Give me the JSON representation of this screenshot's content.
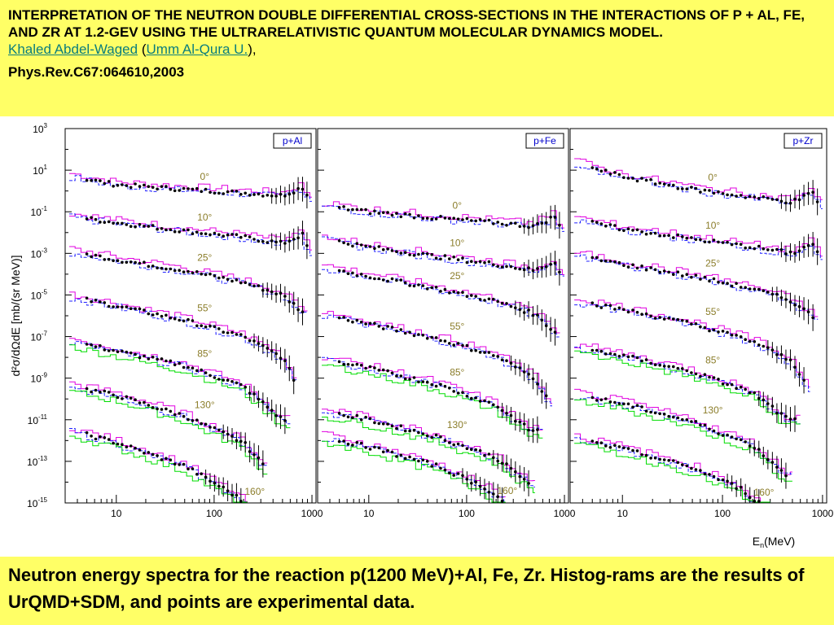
{
  "header": {
    "title": "INTERPRETATION OF THE NEUTRON DOUBLE DIFFERENTIAL CROSS-SECTIONS IN THE INTERACTIONS OF P + AL, FE, AND ZR AT 1.2-GEV USING THE ULTRARELATIVISTIC QUANTUM MOLECULAR DYNAMICS MODEL.",
    "author": "Khaled Abdel-Waged",
    "affiliation": "Umm Al-Qura U.",
    "reference": "Phys.Rev.C67:064610,2003"
  },
  "caption": "Neutron energy spectra for the reaction p(1200 MeV)+Al, Fe, Zr. Histog-rams are the results of UrQMD+SDM, and points are experimental data.",
  "colors": {
    "background": "#ffff66",
    "experiment": "#000000",
    "model_magenta": "#e000e0",
    "model_blue_dashed": "#2020ff",
    "model_green": "#00dd00",
    "angle_label": "#8b7d2a",
    "panel_label": "#0000cc"
  },
  "chart_data": {
    "type": "scatter",
    "xscale": "log",
    "yscale": "log",
    "xlabel": "E_n(MeV)",
    "ylabel": "d²σ/dΩdE [mb/(sr MeV)]",
    "xlim": [
      3,
      1100
    ],
    "ylim": [
      1e-15,
      1000.0
    ],
    "x_ticks": [
      "10",
      "100",
      "1000"
    ],
    "y_ticks": [
      "10^3",
      "10^1",
      "10^-1",
      "10^-3",
      "10^-5",
      "10^-7",
      "10^-9",
      "10^-11",
      "10^-13",
      "10^-15"
    ],
    "angles": [
      "0°",
      "10°",
      "25°",
      "55°",
      "85°",
      "130°",
      "160°"
    ],
    "panels": [
      {
        "label": "p+Al",
        "curves": [
          {
            "angle": "0°",
            "e_max": 1000,
            "points": [
              [
                3.5,
                5
              ],
              [
                10,
                2
              ],
              [
                50,
                1.2
              ],
              [
                200,
                0.8
              ],
              [
                500,
                0.6
              ],
              [
                800,
                1.5
              ],
              [
                950,
                0.4
              ]
            ]
          },
          {
            "angle": "10°",
            "e_max": 1000,
            "points": [
              [
                3.5,
                0.06
              ],
              [
                10,
                0.03
              ],
              [
                50,
                0.012
              ],
              [
                200,
                0.006
              ],
              [
                500,
                0.003
              ],
              [
                800,
                0.008
              ],
              [
                950,
                0.001
              ]
            ]
          },
          {
            "angle": "25°",
            "e_max": 900,
            "points": [
              [
                3.5,
                0.0012
              ],
              [
                10,
                0.0005
              ],
              [
                50,
                0.00015
              ],
              [
                200,
                4e-05
              ],
              [
                500,
                1e-05
              ],
              [
                900,
                1e-06
              ]
            ]
          },
          {
            "angle": "55°",
            "e_max": 700,
            "points": [
              [
                3.5,
                8e-06
              ],
              [
                10,
                3e-06
              ],
              [
                50,
                6e-07
              ],
              [
                200,
                1e-07
              ],
              [
                500,
                1e-08
              ],
              [
                700,
                5e-10
              ]
            ]
          },
          {
            "angle": "85°",
            "e_max": 600,
            "points": [
              [
                3.5,
                6e-08
              ],
              [
                10,
                2e-08
              ],
              [
                50,
                4e-09
              ],
              [
                200,
                4e-10
              ],
              [
                500,
                1e-11
              ]
            ]
          },
          {
            "angle": "130°",
            "e_max": 350,
            "points": [
              [
                3.5,
                4e-10
              ],
              [
                10,
                1.5e-10
              ],
              [
                50,
                1.5e-11
              ],
              [
                200,
                8e-13
              ],
              [
                350,
                4e-14
              ]
            ]
          },
          {
            "angle": "160°",
            "e_max": 220,
            "points": [
              [
                3.5,
                3e-12
              ],
              [
                10,
                8e-13
              ],
              [
                50,
                6e-14
              ],
              [
                150,
                3e-15
              ],
              [
                220,
                8e-16
              ]
            ]
          }
        ]
      },
      {
        "label": "p+Fe",
        "curves": [
          {
            "angle": "0°",
            "e_max": 1000,
            "points": [
              [
                3.5,
                0.2
              ],
              [
                10,
                0.1
              ],
              [
                50,
                0.05
              ],
              [
                200,
                0.03
              ],
              [
                500,
                0.02
              ],
              [
                800,
                0.06
              ],
              [
                950,
                0.01
              ]
            ]
          },
          {
            "angle": "10°",
            "e_max": 1000,
            "points": [
              [
                3.5,
                0.005
              ],
              [
                10,
                0.002
              ],
              [
                50,
                0.0007
              ],
              [
                200,
                0.0003
              ],
              [
                500,
                0.00015
              ],
              [
                800,
                0.0004
              ],
              [
                950,
                8e-05
              ]
            ]
          },
          {
            "angle": "25°",
            "e_max": 900,
            "points": [
              [
                3.5,
                0.0002
              ],
              [
                10,
                8e-05
              ],
              [
                50,
                2e-05
              ],
              [
                200,
                5e-06
              ],
              [
                500,
                1.2e-06
              ],
              [
                900,
                1e-07
              ]
            ]
          },
          {
            "angle": "55°",
            "e_max": 750,
            "points": [
              [
                3.5,
                1.2e-06
              ],
              [
                10,
                4e-07
              ],
              [
                50,
                8e-08
              ],
              [
                200,
                1.2e-08
              ],
              [
                500,
                1e-09
              ],
              [
                750,
                4e-11
              ]
            ]
          },
          {
            "angle": "85°",
            "e_max": 600,
            "points": [
              [
                3.5,
                8e-09
              ],
              [
                10,
                3e-09
              ],
              [
                50,
                5e-10
              ],
              [
                200,
                5e-11
              ],
              [
                450,
                3e-12
              ]
            ]
          },
          {
            "angle": "130°",
            "e_max": 500,
            "points": [
              [
                3.5,
                2.5e-11
              ],
              [
                10,
                1e-11
              ],
              [
                50,
                1.5e-12
              ],
              [
                200,
                1.5e-13
              ],
              [
                450,
                8e-15
              ]
            ]
          },
          {
            "angle": "160°",
            "e_max": 250,
            "points": [
              [
                3.5,
                1.5e-12
              ],
              [
                10,
                5e-13
              ],
              [
                50,
                6e-14
              ],
              [
                150,
                6e-15
              ],
              [
                250,
                1e-15
              ]
            ]
          }
        ]
      },
      {
        "label": "p+Zr",
        "curves": [
          {
            "angle": "0°",
            "e_max": 1000,
            "points": [
              [
                3.5,
                20
              ],
              [
                10,
                5
              ],
              [
                50,
                1.2
              ],
              [
                200,
                0.5
              ],
              [
                500,
                0.3
              ],
              [
                800,
                0.8
              ],
              [
                950,
                0.2
              ]
            ]
          },
          {
            "angle": "10°",
            "e_max": 1000,
            "points": [
              [
                3.5,
                0.04
              ],
              [
                10,
                0.015
              ],
              [
                50,
                0.005
              ],
              [
                200,
                0.002
              ],
              [
                500,
                0.001
              ],
              [
                800,
                0.003
              ],
              [
                950,
                0.0005
              ]
            ]
          },
          {
            "angle": "25°",
            "e_max": 900,
            "points": [
              [
                3.5,
                0.0008
              ],
              [
                10,
                0.0003
              ],
              [
                50,
                8e-05
              ],
              [
                200,
                2e-05
              ],
              [
                500,
                5e-06
              ],
              [
                900,
                6e-07
              ]
            ]
          },
          {
            "angle": "55°",
            "e_max": 750,
            "points": [
              [
                3.5,
                5e-06
              ],
              [
                10,
                2e-06
              ],
              [
                50,
                4e-07
              ],
              [
                200,
                6e-08
              ],
              [
                500,
                6e-09
              ],
              [
                750,
                3e-10
              ]
            ]
          },
          {
            "angle": "85°",
            "e_max": 600,
            "points": [
              [
                3.5,
                3e-08
              ],
              [
                10,
                1.2e-08
              ],
              [
                50,
                2e-09
              ],
              [
                200,
                2e-10
              ],
              [
                450,
                1e-11
              ]
            ]
          },
          {
            "angle": "130°",
            "e_max": 500,
            "points": [
              [
                3.5,
                1.5e-10
              ],
              [
                10,
                6e-11
              ],
              [
                50,
                8e-12
              ],
              [
                200,
                6e-13
              ],
              [
                450,
                2e-14
              ]
            ]
          },
          {
            "angle": "160°",
            "e_max": 300,
            "points": [
              [
                3.5,
                1.2e-12
              ],
              [
                10,
                4e-13
              ],
              [
                50,
                5e-14
              ],
              [
                150,
                5e-15
              ],
              [
                300,
                4e-16
              ]
            ]
          }
        ]
      }
    ]
  }
}
